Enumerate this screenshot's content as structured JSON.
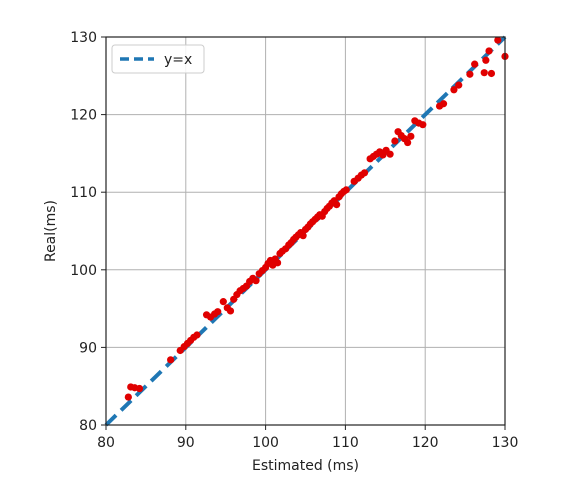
{
  "chart_data": {
    "type": "scatter",
    "xlabel": "Estimated (ms)",
    "ylabel": "Real(ms)",
    "xlim": [
      80,
      130
    ],
    "ylim": [
      80,
      130
    ],
    "xticks": [
      "80",
      "90",
      "100",
      "110",
      "120",
      "130"
    ],
    "yticks": [
      "80",
      "90",
      "100",
      "110",
      "120",
      "130"
    ],
    "grid": true,
    "legend_position": "top-left",
    "reference_line": {
      "label": "y=x",
      "style": "dashed",
      "color": "#1f77b4"
    },
    "point_color": "#e00000",
    "points": [
      [
        82.8,
        83.6
      ],
      [
        83.1,
        84.9
      ],
      [
        83.6,
        84.8
      ],
      [
        84.2,
        84.7
      ],
      [
        88.1,
        88.4
      ],
      [
        89.3,
        89.6
      ],
      [
        89.8,
        90.1
      ],
      [
        90.2,
        90.5
      ],
      [
        90.6,
        90.9
      ],
      [
        91.0,
        91.3
      ],
      [
        91.4,
        91.6
      ],
      [
        92.6,
        94.2
      ],
      [
        93.1,
        93.9
      ],
      [
        93.6,
        94.3
      ],
      [
        94.0,
        94.6
      ],
      [
        94.7,
        95.9
      ],
      [
        95.2,
        95.1
      ],
      [
        95.6,
        94.7
      ],
      [
        96.0,
        96.2
      ],
      [
        96.4,
        96.8
      ],
      [
        96.8,
        97.3
      ],
      [
        97.2,
        97.6
      ],
      [
        97.6,
        97.9
      ],
      [
        98.0,
        98.5
      ],
      [
        98.4,
        98.9
      ],
      [
        98.8,
        98.6
      ],
      [
        99.2,
        99.5
      ],
      [
        99.6,
        99.9
      ],
      [
        100.0,
        100.3
      ],
      [
        100.3,
        100.8
      ],
      [
        100.6,
        101.2
      ],
      [
        100.9,
        100.6
      ],
      [
        101.2,
        101.4
      ],
      [
        101.5,
        100.9
      ],
      [
        101.8,
        102.1
      ],
      [
        102.1,
        102.4
      ],
      [
        102.5,
        102.7
      ],
      [
        102.9,
        103.2
      ],
      [
        103.2,
        103.5
      ],
      [
        103.5,
        103.9
      ],
      [
        103.8,
        104.2
      ],
      [
        104.1,
        104.5
      ],
      [
        104.4,
        104.8
      ],
      [
        104.7,
        104.4
      ],
      [
        105.0,
        105.2
      ],
      [
        105.3,
        105.5
      ],
      [
        105.6,
        105.9
      ],
      [
        105.9,
        106.2
      ],
      [
        106.2,
        106.5
      ],
      [
        106.5,
        106.8
      ],
      [
        106.8,
        107.1
      ],
      [
        107.1,
        106.9
      ],
      [
        107.4,
        107.5
      ],
      [
        107.7,
        107.9
      ],
      [
        108.0,
        108.2
      ],
      [
        108.3,
        108.6
      ],
      [
        108.6,
        108.9
      ],
      [
        108.9,
        108.4
      ],
      [
        109.2,
        109.4
      ],
      [
        109.5,
        109.8
      ],
      [
        109.8,
        110.1
      ],
      [
        110.1,
        110.3
      ],
      [
        111.1,
        111.4
      ],
      [
        111.6,
        111.8
      ],
      [
        112.0,
        112.2
      ],
      [
        112.4,
        112.5
      ],
      [
        113.1,
        114.3
      ],
      [
        113.5,
        114.6
      ],
      [
        113.9,
        114.9
      ],
      [
        114.3,
        115.2
      ],
      [
        114.7,
        114.8
      ],
      [
        115.1,
        115.4
      ],
      [
        115.6,
        114.9
      ],
      [
        116.2,
        116.6
      ],
      [
        116.6,
        117.8
      ],
      [
        117.0,
        117.3
      ],
      [
        117.4,
        116.9
      ],
      [
        117.8,
        116.4
      ],
      [
        118.2,
        117.2
      ],
      [
        118.7,
        119.2
      ],
      [
        119.2,
        118.9
      ],
      [
        119.7,
        118.7
      ],
      [
        121.8,
        121.1
      ],
      [
        122.3,
        121.4
      ],
      [
        123.6,
        123.2
      ],
      [
        124.2,
        123.8
      ],
      [
        125.6,
        125.2
      ],
      [
        126.2,
        126.5
      ],
      [
        127.4,
        125.4
      ],
      [
        127.6,
        127.0
      ],
      [
        128.0,
        128.2
      ],
      [
        128.3,
        125.3
      ],
      [
        129.1,
        129.6
      ],
      [
        130.0,
        127.5
      ]
    ]
  }
}
